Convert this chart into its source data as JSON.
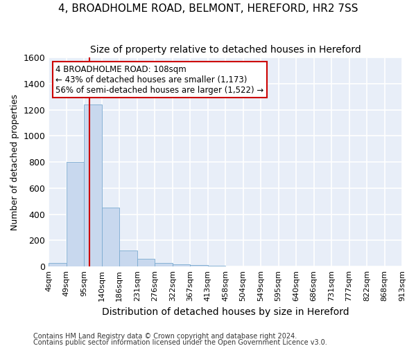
{
  "title1": "4, BROADHOLME ROAD, BELMONT, HEREFORD, HR2 7SS",
  "title2": "Size of property relative to detached houses in Hereford",
  "xlabel": "Distribution of detached houses by size in Hereford",
  "ylabel": "Number of detached properties",
  "bar_color": "#c8d8ee",
  "bar_edge_color": "#7aaad0",
  "bar_heights": [
    25,
    800,
    1240,
    450,
    125,
    60,
    25,
    15,
    10,
    5,
    0,
    0,
    0,
    0,
    0,
    0,
    0,
    0,
    0,
    0
  ],
  "bin_labels": [
    "4sqm",
    "49sqm",
    "95sqm",
    "140sqm",
    "186sqm",
    "231sqm",
    "276sqm",
    "322sqm",
    "367sqm",
    "413sqm",
    "458sqm",
    "504sqm",
    "549sqm",
    "595sqm",
    "640sqm",
    "686sqm",
    "731sqm",
    "777sqm",
    "822sqm",
    "868sqm",
    "913sqm"
  ],
  "ylim": [
    0,
    1600
  ],
  "yticks": [
    0,
    200,
    400,
    600,
    800,
    1000,
    1200,
    1400,
    1600
  ],
  "vline_color": "#cc0000",
  "annotation_text": "4 BROADHOLME ROAD: 108sqm\n← 43% of detached houses are smaller (1,173)\n56% of semi-detached houses are larger (1,522) →",
  "annotation_box_color": "#ffffff",
  "annotation_box_edge": "#cc0000",
  "footer1": "Contains HM Land Registry data © Crown copyright and database right 2024.",
  "footer2": "Contains public sector information licensed under the Open Government Licence v3.0.",
  "bg_color": "#e8eef8",
  "grid_color": "#ffffff",
  "fig_bg_color": "#ffffff",
  "title_fontsize": 11,
  "subtitle_fontsize": 10,
  "tick_fontsize": 8,
  "ylabel_fontsize": 9,
  "xlabel_fontsize": 10
}
